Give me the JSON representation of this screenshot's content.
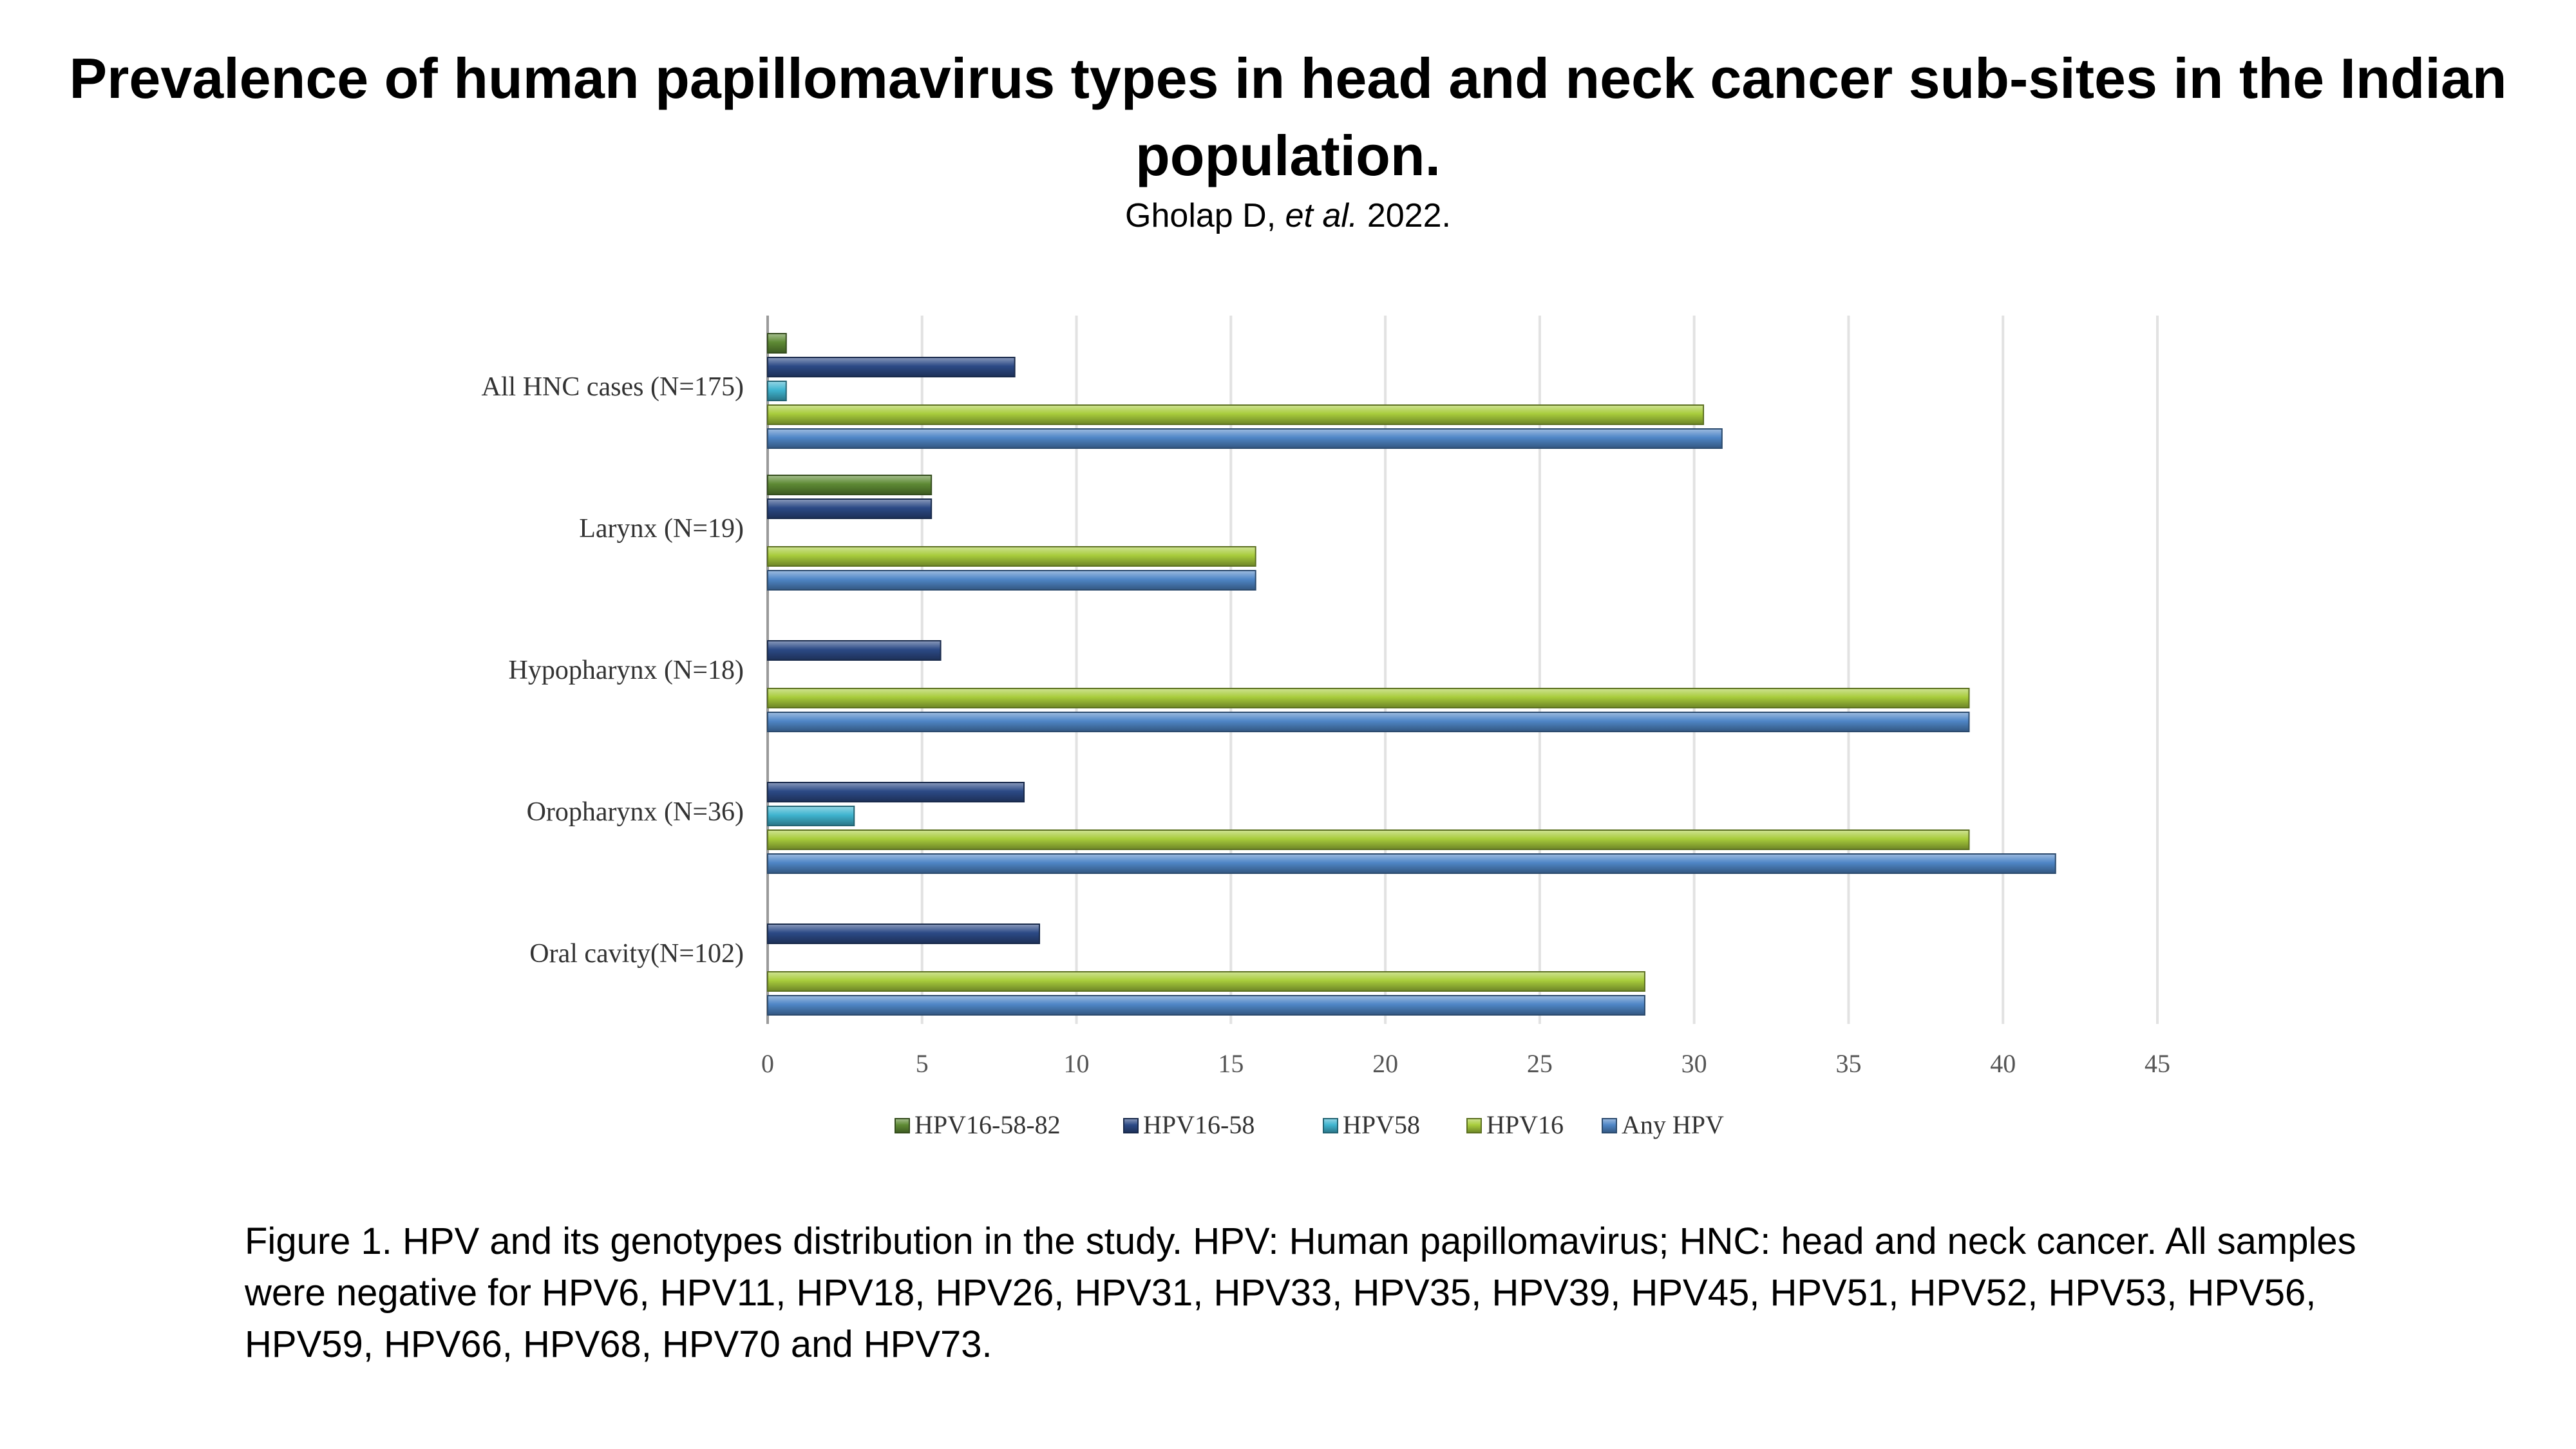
{
  "header": {
    "title": "Prevalence of human papillomavirus types in head and neck cancer sub-sites in the Indian population.",
    "citation_authors": "Gholap D,",
    "citation_etal": "et al.",
    "citation_year": "2022."
  },
  "caption": "Figure 1. HPV and its genotypes distribution in the study. HPV: Human papillomavirus; HNC: head and neck cancer. All samples were negative for HPV6, HPV11, HPV18, HPV26, HPV31, HPV33, HPV35, HPV39, HPV45, HPV51, HPV52, HPV53, HPV56, HPV59, HPV66, HPV68, HPV70 and HPV73.",
  "chart_data": {
    "type": "bar",
    "orientation": "horizontal",
    "categories": [
      "All HNC cases (N=175)",
      "Larynx (N=19)",
      "Hypopharynx (N=18)",
      "Oropharynx (N=36)",
      "Oral cavity(N=102)"
    ],
    "series": [
      {
        "name": "HPV16-58-82",
        "color": "#5e8a34",
        "values": [
          0.6,
          5.3,
          0,
          0,
          0
        ]
      },
      {
        "name": "HPV16-58",
        "color": "#2c4a86",
        "values": [
          8.0,
          5.3,
          5.6,
          8.3,
          8.8
        ]
      },
      {
        "name": "HPV58",
        "color": "#3fb4cf",
        "values": [
          0.6,
          0,
          0,
          2.8,
          0
        ]
      },
      {
        "name": "HPV16",
        "color": "#a8cc3c",
        "values": [
          30.3,
          15.8,
          38.9,
          38.9,
          28.4
        ]
      },
      {
        "name": "Any HPV",
        "color": "#4f86c6",
        "values": [
          30.9,
          15.8,
          38.9,
          41.7,
          28.4
        ]
      }
    ],
    "xlim": [
      0,
      45
    ],
    "xticks": [
      "0",
      "5",
      "10",
      "15",
      "20",
      "25",
      "30",
      "35",
      "40",
      "45"
    ],
    "xlabel": "",
    "ylabel": "",
    "grid": true,
    "legend_position": "bottom"
  }
}
